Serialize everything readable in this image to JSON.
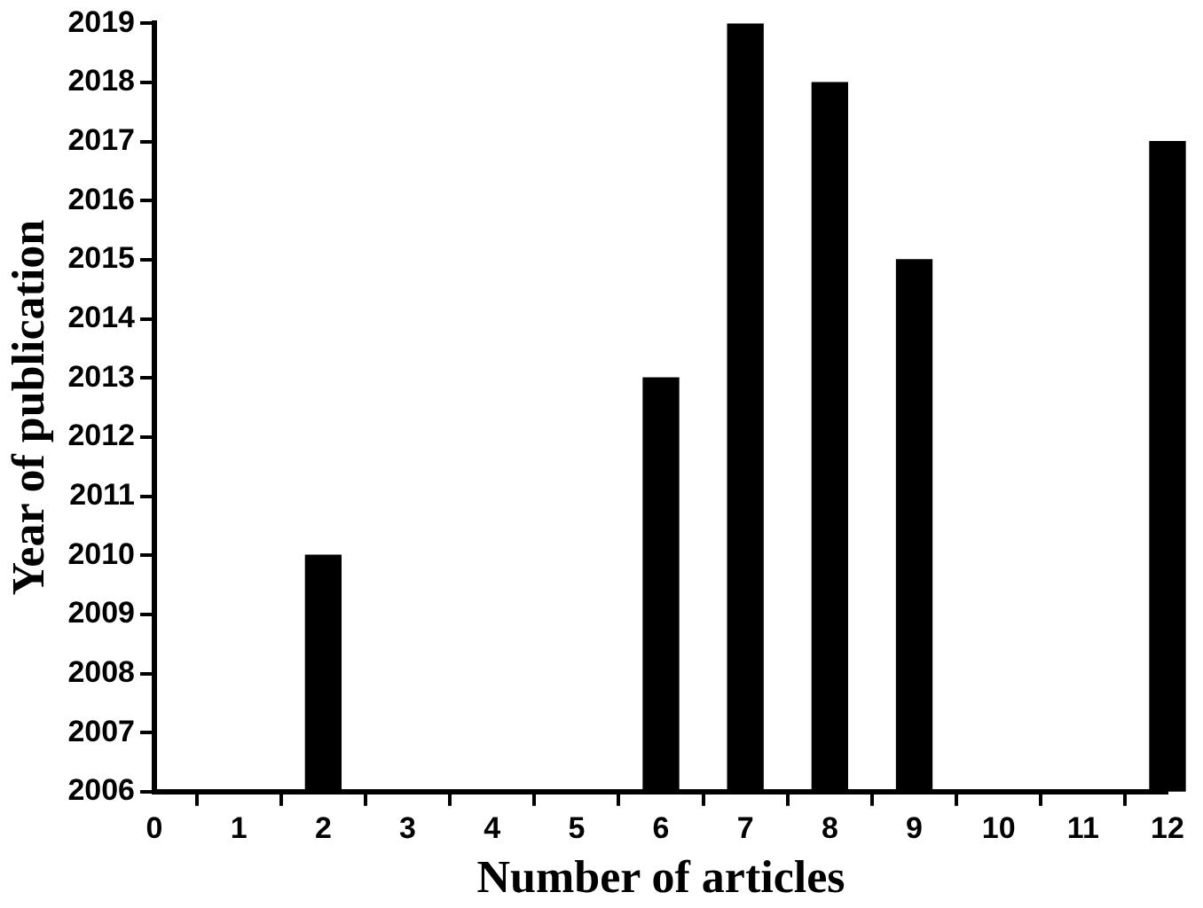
{
  "chart_data": {
    "type": "bar",
    "xlabel": "Number of articles",
    "ylabel": "Year of publication",
    "x": [
      2,
      4,
      6,
      7,
      8,
      9,
      12
    ],
    "values": [
      2010,
      2006,
      2013,
      2019,
      2018,
      2015,
      2017
    ],
    "color": "#000000",
    "xlim": [
      0,
      12
    ],
    "xticks": [
      0,
      1,
      2,
      3,
      4,
      5,
      6,
      7,
      8,
      9,
      10,
      11,
      12
    ],
    "ylim": [
      2006,
      2019
    ],
    "yticks": [
      2006,
      2007,
      2008,
      2009,
      2010,
      2011,
      2012,
      2013,
      2014,
      2015,
      2016,
      2017,
      2018,
      2019
    ],
    "grid": false,
    "legend": false
  }
}
